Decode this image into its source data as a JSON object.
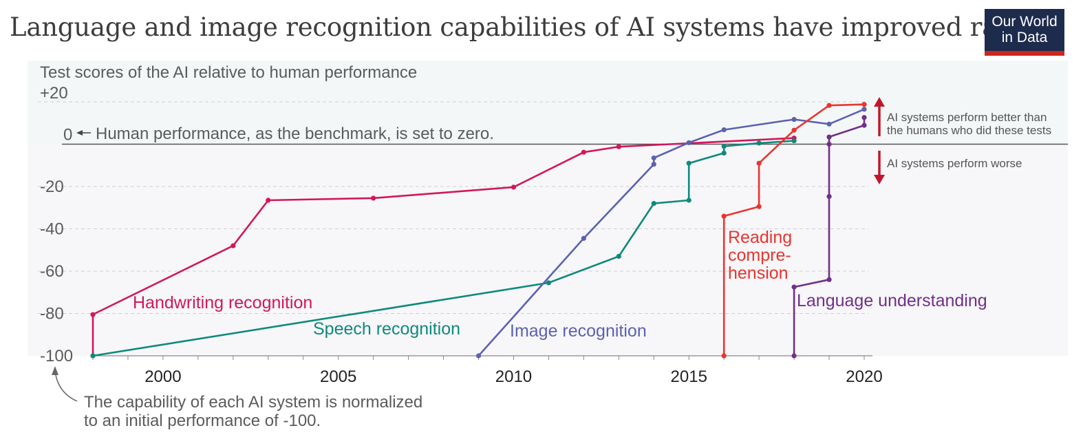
{
  "header": {
    "title": "Language and image recognition capabilities of AI systems have improved rapidly",
    "logo_line1": "Our World",
    "logo_line2": "in Data"
  },
  "chart_data": {
    "type": "line",
    "title": "Language and image recognition capabilities of AI systems have improved rapidly",
    "ylabel": "Test scores of the AI relative to human performance",
    "xlim": [
      1998,
      2020
    ],
    "ylim": [
      -100,
      20
    ],
    "x_ticks": [
      "2000",
      "2005",
      "2010",
      "2015",
      "2020"
    ],
    "y_ticks": [
      "+20",
      "0",
      "-20",
      "-40",
      "-60",
      "-80",
      "-100"
    ],
    "annotations": {
      "zero_line": "Human performance, as the benchmark, is set to zero.",
      "baseline_note_1": "The capability of each AI system is normalized",
      "baseline_note_2": "to an initial performance of -100.",
      "better_1": "AI systems perform better than",
      "better_2": "the humans who did these tests",
      "worse": "AI systems perform worse"
    },
    "series": [
      {
        "name": "Handwriting recognition",
        "color": "#d0185a",
        "points": [
          [
            1998,
            -100
          ],
          [
            1998,
            -80.5
          ],
          [
            2002,
            -48
          ],
          [
            2003,
            -26.5
          ],
          [
            2006,
            -25.5
          ],
          [
            2010,
            -20.3
          ],
          [
            2012,
            -3.8
          ],
          [
            2013,
            -1.2
          ],
          [
            2018,
            2.9
          ]
        ]
      },
      {
        "name": "Speech recognition",
        "color": "#0d8a7c",
        "points": [
          [
            1998,
            -100
          ],
          [
            2011,
            -65.5
          ],
          [
            2013,
            -53
          ],
          [
            2014,
            -28
          ],
          [
            2015,
            -26.5
          ],
          [
            2015,
            -9
          ],
          [
            2016,
            -4.2
          ],
          [
            2016,
            -1
          ],
          [
            2017,
            0.5
          ],
          [
            2018,
            1.6
          ]
        ]
      },
      {
        "name": "Image recognition",
        "color": "#5b62b0",
        "points": [
          [
            2009,
            -100
          ],
          [
            2012,
            -44.5
          ],
          [
            2014,
            -9.5
          ],
          [
            2014,
            -6.5
          ],
          [
            2015,
            0.7
          ],
          [
            2016,
            6.8
          ],
          [
            2018,
            11.7
          ],
          [
            2019,
            9.5
          ],
          [
            2020,
            16.5
          ]
        ]
      },
      {
        "name": "Reading comprehension",
        "label_lines": [
          "Reading",
          "compre-",
          "hension"
        ],
        "color": "#e8352f",
        "points": [
          [
            2016,
            -100
          ],
          [
            2016,
            -34
          ],
          [
            2017,
            -29.5
          ],
          [
            2017,
            -9
          ],
          [
            2018,
            6.6
          ],
          [
            2019,
            18.3
          ],
          [
            2020,
            18.8
          ]
        ]
      },
      {
        "name": "Language understanding",
        "color": "#702f8a",
        "points": [
          [
            2018,
            -100
          ],
          [
            2018,
            -67.5
          ],
          [
            2019,
            -64
          ],
          [
            2019,
            -24.7
          ],
          [
            2019,
            0
          ],
          [
            2019,
            3.4
          ],
          [
            2020,
            8.9
          ],
          [
            2020,
            12.6
          ]
        ]
      }
    ]
  }
}
